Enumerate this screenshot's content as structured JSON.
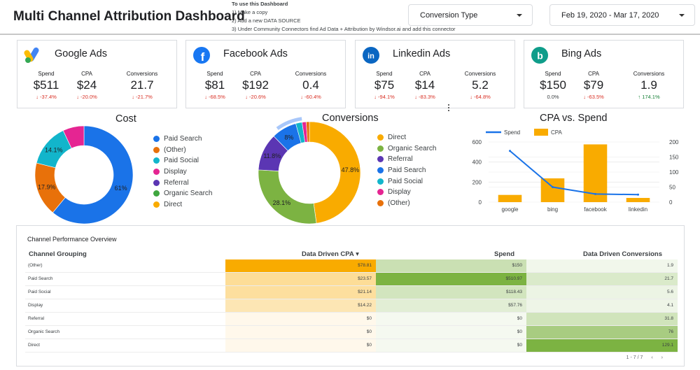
{
  "header": {
    "title": "Multi Channel Attribution Dashboard",
    "instructions": {
      "heading": "To use this Dashboard",
      "steps": [
        "1) Make a copy",
        "2) Add a new DATA SOURCE",
        "3) Under Community Connectors find Ad Data + Attribution by Windsor.ai and add this connector"
      ]
    },
    "conversion_type": "Conversion Type",
    "date_range": "Feb 19, 2020 - Mar 17, 2020"
  },
  "kpis": [
    {
      "name": "Google Ads",
      "icon": "google-ads-icon",
      "spend": {
        "label": "Spend",
        "value": "$511",
        "delta": "↓ -37.4%",
        "dir": "neg"
      },
      "cpa": {
        "label": "CPA",
        "value": "$24",
        "delta": "↓ -20.0%",
        "dir": "neg"
      },
      "conv": {
        "label": "Conversions",
        "value": "21.7",
        "delta": "↓ -21.7%",
        "dir": "neg"
      }
    },
    {
      "name": "Facebook Ads",
      "icon": "facebook-icon",
      "spend": {
        "label": "Spend",
        "value": "$81",
        "delta": "↓ -68.5%",
        "dir": "neg"
      },
      "cpa": {
        "label": "CPA",
        "value": "$192",
        "delta": "↓ -20.6%",
        "dir": "neg"
      },
      "conv": {
        "label": "Conversions",
        "value": "0.4",
        "delta": "↓ -60.4%",
        "dir": "neg"
      }
    },
    {
      "name": "Linkedin Ads",
      "icon": "linkedin-icon",
      "spend": {
        "label": "Spend",
        "value": "$75",
        "delta": "↓ -94.1%",
        "dir": "neg"
      },
      "cpa": {
        "label": "CPA",
        "value": "$14",
        "delta": "↓ -83.3%",
        "dir": "neg"
      },
      "conv": {
        "label": "Conversions",
        "value": "5.2",
        "delta": "↓ -64.8%",
        "dir": "neg"
      }
    },
    {
      "name": "Bing Ads",
      "icon": "bing-icon",
      "spend": {
        "label": "Spend",
        "value": "$150",
        "delta": "0.0%",
        "dir": "neu"
      },
      "cpa": {
        "label": "CPA",
        "value": "$79",
        "delta": "↓ -63.5%",
        "dir": "neg"
      },
      "conv": {
        "label": "Conversions",
        "value": "1.9",
        "delta": "↑ 174.1%",
        "dir": "pos"
      }
    }
  ],
  "chart_data": [
    {
      "type": "pie",
      "title": "Cost",
      "slices": [
        {
          "name": "Paid Search",
          "value": 61.0,
          "label": "61%",
          "color": "#1a73e8"
        },
        {
          "name": "(Other)",
          "value": 17.9,
          "label": "17.9%",
          "color": "#e8710a"
        },
        {
          "name": "Paid Social",
          "value": 14.1,
          "label": "14.1%",
          "color": "#12b5cb"
        },
        {
          "name": "Display",
          "value": 7.0,
          "label": "",
          "color": "#e52592"
        },
        {
          "name": "Referral",
          "value": 0,
          "label": "",
          "color": "#5b36b3"
        },
        {
          "name": "Organic Search",
          "value": 0,
          "label": "",
          "color": "#3fa63f"
        },
        {
          "name": "Direct",
          "value": 0,
          "label": "",
          "color": "#f9ab00"
        }
      ],
      "legend": "right"
    },
    {
      "type": "pie",
      "title": "Conversions",
      "slices": [
        {
          "name": "Direct",
          "value": 47.8,
          "label": "47.8%",
          "color": "#f9ab00"
        },
        {
          "name": "Organic Search",
          "value": 28.1,
          "label": "28.1%",
          "color": "#7cb342"
        },
        {
          "name": "Referral",
          "value": 11.8,
          "label": "11.8%",
          "color": "#5b36b3"
        },
        {
          "name": "Paid Search",
          "value": 8.0,
          "label": "8%",
          "color": "#1a73e8"
        },
        {
          "name": "Paid Social",
          "value": 2.0,
          "label": "",
          "color": "#12b5cb"
        },
        {
          "name": "Display",
          "value": 1.3,
          "label": "",
          "color": "#e52592"
        },
        {
          "name": "(Other)",
          "value": 1.0,
          "label": "",
          "color": "#e8710a"
        }
      ],
      "legend": "right"
    },
    {
      "type": "bar",
      "title": "CPA vs. Spend",
      "categories": [
        "google",
        "bing",
        "facebook",
        "linkedin"
      ],
      "series": [
        {
          "name": "Spend",
          "type": "line",
          "axis": "left",
          "values": [
            510.97,
            150,
            81,
            75
          ],
          "color": "#1a73e8"
        },
        {
          "name": "CPA",
          "type": "bar",
          "axis": "right",
          "values": [
            24,
            79,
            192,
            14
          ],
          "color": "#f9ab00"
        }
      ],
      "ylim_left": [
        0,
        600
      ],
      "yticks_left": [
        0,
        200,
        400,
        600
      ],
      "ylim_right": [
        0,
        200
      ],
      "yticks_right": [
        0,
        50,
        100,
        150,
        200
      ],
      "legend": "top",
      "grid": true
    }
  ],
  "table": {
    "title": "Channel Performance Overview",
    "headers": [
      "Channel Grouping",
      "Data Driven CPA ▾",
      "Spend",
      "Data Driven Conversions"
    ],
    "rows": [
      {
        "channel": "(Other)",
        "cpa": "$78.81",
        "spend": "$150",
        "conv": "1.9"
      },
      {
        "channel": "Paid Search",
        "cpa": "$23.57",
        "spend": "$510.97",
        "conv": "21.7"
      },
      {
        "channel": "Paid Social",
        "cpa": "$21.14",
        "spend": "$118.43",
        "conv": "5.6"
      },
      {
        "channel": "Display",
        "cpa": "$14.22",
        "spend": "$57.76",
        "conv": "4.1"
      },
      {
        "channel": "Referral",
        "cpa": "$0",
        "spend": "$0",
        "conv": "31.8"
      },
      {
        "channel": "Organic Search",
        "cpa": "$0",
        "spend": "$0",
        "conv": "76"
      },
      {
        "channel": "Direct",
        "cpa": "$0",
        "spend": "$0",
        "conv": "129.1"
      }
    ],
    "heat": {
      "cpa_color": "#f9ab00",
      "spend_color": "#7cb342",
      "conv_color": "#7cb342"
    },
    "pagination": {
      "range": "1 - 7 / 7",
      "prev": "‹",
      "next": "›"
    }
  }
}
